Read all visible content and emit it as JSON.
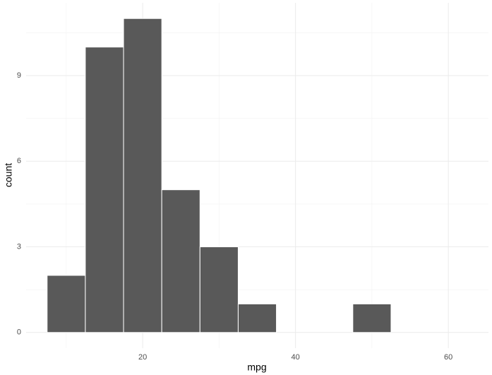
{
  "chart_data": {
    "type": "histogram",
    "xlabel": "mpg",
    "ylabel": "count",
    "bins": [
      7.5,
      12.5,
      17.5,
      22.5,
      27.5,
      32.5,
      37.5,
      42.5,
      47.5,
      52.5,
      57.5,
      62.5
    ],
    "counts": [
      2,
      10,
      11,
      5,
      3,
      1,
      0,
      0,
      1,
      0,
      0
    ],
    "color": "#595959",
    "edgecolor": "#ffffff",
    "xlim": [
      4.75,
      65.25
    ],
    "xticks": [
      20,
      40,
      60
    ],
    "xminor": [
      10,
      30,
      50
    ],
    "ylim": [
      -0.55,
      11.55
    ],
    "yticks": [
      0,
      3,
      6,
      9
    ],
    "yminor": [
      1.5,
      4.5,
      7.5,
      10.5
    ],
    "grid": true
  }
}
